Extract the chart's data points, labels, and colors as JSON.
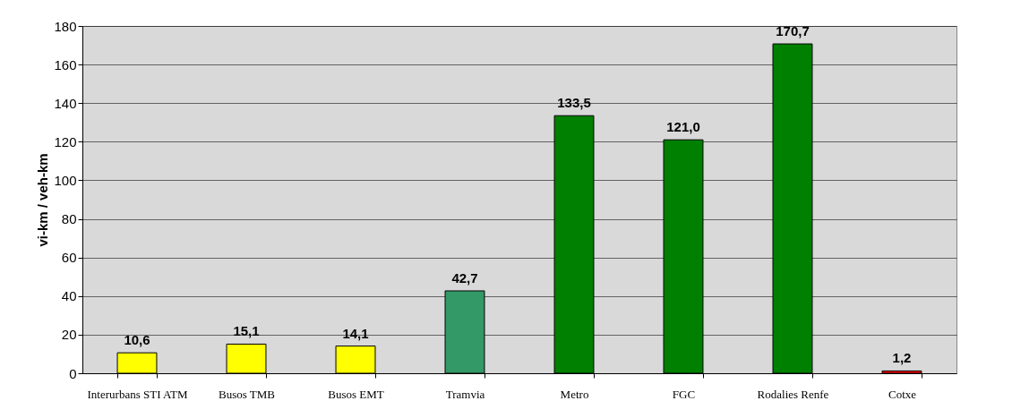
{
  "chart_data": {
    "type": "bar",
    "ylabel": "vi-km / veh-km",
    "categories": [
      "Interurbans STI ATM",
      "Busos TMB",
      "Busos EMT",
      "Tramvia",
      "Metro",
      "FGC",
      "Rodalies Renfe",
      "Cotxe"
    ],
    "values": [
      10.6,
      15.1,
      14.1,
      42.7,
      133.5,
      121.0,
      170.7,
      1.2
    ],
    "value_labels": [
      "10,6",
      "15,1",
      "14,1",
      "42,7",
      "133,5",
      "121,0",
      "170,7",
      "1,2"
    ],
    "colors": [
      "#ffff00",
      "#ffff00",
      "#ffff00",
      "#339966",
      "#008000",
      "#008000",
      "#008000",
      "#ff0000"
    ],
    "ylim": [
      0,
      180
    ],
    "yticks": [
      0,
      20,
      40,
      60,
      80,
      100,
      120,
      140,
      160,
      180
    ],
    "grid": "y",
    "legend": false
  }
}
